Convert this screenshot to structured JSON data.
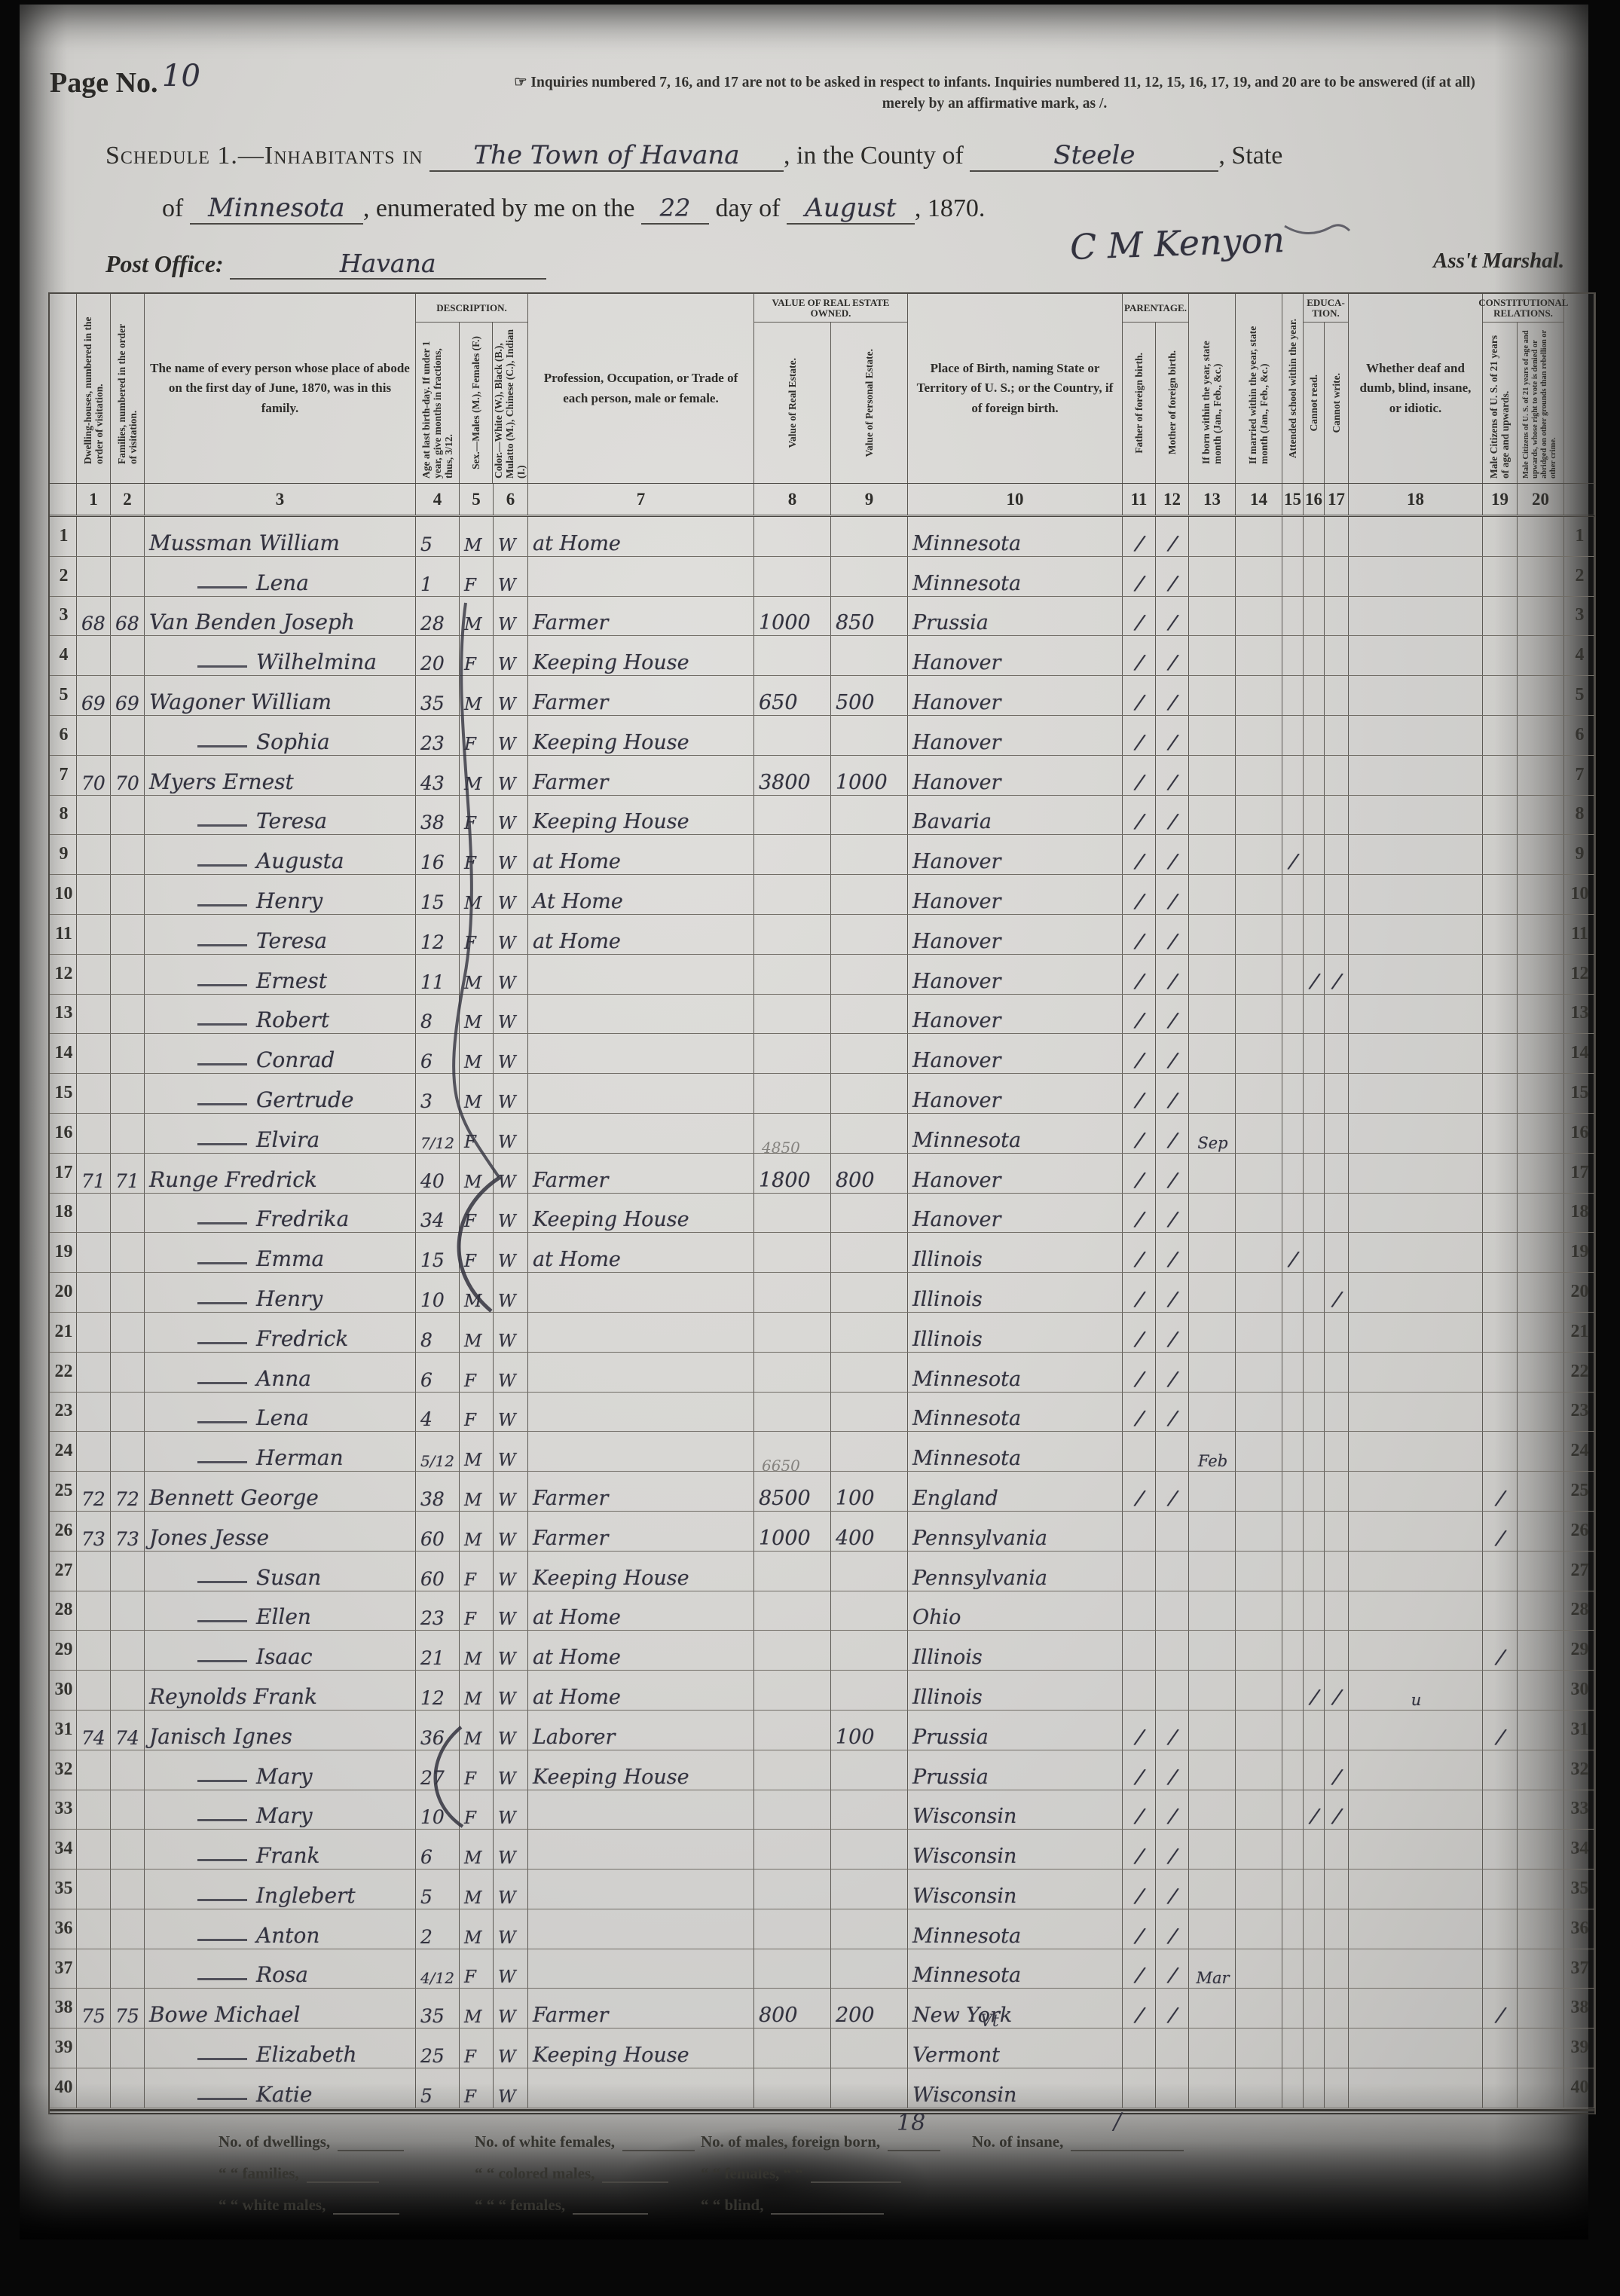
{
  "page": {
    "label": "Page No.",
    "number": "10"
  },
  "note": {
    "line1": "☞ Inquiries numbered 7, 16, and 17 are not to be asked in respect to infants.   Inquiries numbered 11, 12, 15, 16, 17, 19, and 20 are to be answered (if at all)",
    "line2": "merely by an affirmative mark, as /."
  },
  "schedule": {
    "prefix": "Schedule 1.—Inhabitants in",
    "place": "The Town of Havana",
    "mid1": ", in the County of",
    "county": "Steele",
    "mid2": ", State",
    "line2_prefix": "of",
    "state": "Minnesota",
    "mid3": ", enumerated by me on the",
    "day": "22",
    "mid4": "day of",
    "month": "August",
    "year": ", 1870."
  },
  "post_office": {
    "label": "Post Office:",
    "value": "Havana"
  },
  "signature": {
    "name": "C M Kenyon",
    "title": "Ass't Marshal."
  },
  "table": {
    "groups": {
      "description": "DESCRIPTION.",
      "value_owned": "VALUE OF REAL ESTATE OWNED.",
      "parentage": "PARENTAGE.",
      "education": "EDUCA- TION.",
      "constitutional": "CONSTITUTIONAL RELATIONS."
    },
    "columns": [
      {
        "id": "rl",
        "n": "",
        "label": ""
      },
      {
        "id": "1",
        "n": "1",
        "vert": true,
        "label": "Dwelling-houses, numbered in the order of visitation."
      },
      {
        "id": "2",
        "n": "2",
        "vert": true,
        "label": "Families, numbered in the order of visitation."
      },
      {
        "id": "3",
        "n": "3",
        "label": "The name of every person whose place of abode on the first day of June, 1870, was in this family."
      },
      {
        "id": "4",
        "n": "4",
        "vert": true,
        "group": "description",
        "label": "Age at last birth-day. If under 1 year, give months in fractions, thus, 3/12."
      },
      {
        "id": "5",
        "n": "5",
        "vert": true,
        "group": "description",
        "label": "Sex.—Males (M.), Females (F.)"
      },
      {
        "id": "6",
        "n": "6",
        "vert": true,
        "group": "description",
        "label": "Color.—White (W.), Black (B.), Mulatto (M.), Chinese (C.), Indian (I.)"
      },
      {
        "id": "7",
        "n": "7",
        "label": "Profession, Occupation, or Trade of each person, male or female."
      },
      {
        "id": "8",
        "n": "8",
        "vert": true,
        "group": "value_owned",
        "label": "Value of Real Estate."
      },
      {
        "id": "9",
        "n": "9",
        "vert": true,
        "group": "value_owned",
        "label": "Value of Personal Estate."
      },
      {
        "id": "10",
        "n": "10",
        "label": "Place of Birth, naming State or Territory of U. S.; or the Country, if of foreign birth."
      },
      {
        "id": "11",
        "n": "11",
        "vert": true,
        "group": "parentage",
        "label": "Father of foreign birth."
      },
      {
        "id": "12",
        "n": "12",
        "vert": true,
        "group": "parentage",
        "label": "Mother of foreign birth."
      },
      {
        "id": "13",
        "n": "13",
        "vert": true,
        "label": "If born within the year, state month (Jan., Feb., &c.)"
      },
      {
        "id": "14",
        "n": "14",
        "vert": true,
        "label": "If married within the year, state month (Jan., Feb., &c.)"
      },
      {
        "id": "15",
        "n": "15",
        "vert": true,
        "label": "Attended school within the year."
      },
      {
        "id": "16",
        "n": "16",
        "vert": true,
        "group": "education",
        "label": "Cannot read."
      },
      {
        "id": "17",
        "n": "17",
        "vert": true,
        "group": "education",
        "label": "Cannot write."
      },
      {
        "id": "18",
        "n": "18",
        "label": "Whether deaf and dumb, blind, insane, or idiotic."
      },
      {
        "id": "19",
        "n": "19",
        "vert": true,
        "group": "constitutional",
        "label": "Male Citizens of U. S. of 21 years of age and upwards."
      },
      {
        "id": "20",
        "n": "20",
        "vert": true,
        "group": "constitutional",
        "label": "Male Citizens of U. S. of 21 years of age and upwards, whose right to vote is denied or abridged on other grounds than rebellion or other crime."
      },
      {
        "id": "rr",
        "n": "",
        "label": ""
      }
    ]
  },
  "rows": [
    {
      "n": "1",
      "dw": "",
      "fam": "",
      "dash": false,
      "name": "Mussman William",
      "age": "5",
      "sex": "M",
      "col": "W",
      "occ": "at Home",
      "re": "",
      "pe": "",
      "pob": "Minnesota",
      "m": {
        "11": "/",
        "12": "/"
      }
    },
    {
      "n": "2",
      "dw": "",
      "fam": "",
      "dash": true,
      "name": "Lena",
      "age": "1",
      "sex": "F",
      "col": "W",
      "occ": "",
      "re": "",
      "pe": "",
      "pob": "Minnesota",
      "m": {
        "11": "/",
        "12": "/"
      }
    },
    {
      "n": "3",
      "dw": "68",
      "fam": "68",
      "dash": false,
      "name": "Van Benden Joseph",
      "age": "28",
      "sex": "M",
      "col": "W",
      "occ": "Farmer",
      "re": "1000",
      "pe": "850",
      "pob": "Prussia",
      "m": {
        "11": "/",
        "12": "/"
      }
    },
    {
      "n": "4",
      "dw": "",
      "fam": "",
      "dash": true,
      "name": "Wilhelmina",
      "age": "20",
      "sex": "F",
      "col": "W",
      "occ": "Keeping House",
      "re": "",
      "pe": "",
      "pob": "Hanover",
      "m": {
        "11": "/",
        "12": "/"
      }
    },
    {
      "n": "5",
      "dw": "69",
      "fam": "69",
      "dash": false,
      "name": "Wagoner William",
      "age": "35",
      "sex": "M",
      "col": "W",
      "occ": "Farmer",
      "re": "650",
      "pe": "500",
      "pob": "Hanover",
      "m": {
        "11": "/",
        "12": "/"
      }
    },
    {
      "n": "6",
      "dw": "",
      "fam": "",
      "dash": true,
      "name": "Sophia",
      "age": "23",
      "sex": "F",
      "col": "W",
      "occ": "Keeping House",
      "re": "",
      "pe": "",
      "pob": "Hanover",
      "m": {
        "11": "/",
        "12": "/"
      }
    },
    {
      "n": "7",
      "dw": "70",
      "fam": "70",
      "dash": false,
      "name": "Myers Ernest",
      "age": "43",
      "sex": "M",
      "col": "W",
      "occ": "Farmer",
      "re": "3800",
      "pe": "1000",
      "pob": "Hanover",
      "m": {
        "11": "/",
        "12": "/"
      }
    },
    {
      "n": "8",
      "dw": "",
      "fam": "",
      "dash": true,
      "name": "Teresa",
      "age": "38",
      "sex": "F",
      "col": "W",
      "occ": "Keeping House",
      "re": "",
      "pe": "",
      "pob": "Bavaria",
      "m": {
        "11": "/",
        "12": "/"
      }
    },
    {
      "n": "9",
      "dw": "",
      "fam": "",
      "dash": true,
      "name": "Augusta",
      "age": "16",
      "sex": "F",
      "col": "W",
      "occ": "at Home",
      "re": "",
      "pe": "",
      "pob": "Hanover",
      "m": {
        "11": "/",
        "12": "/",
        "15": "/"
      }
    },
    {
      "n": "10",
      "dw": "",
      "fam": "",
      "dash": true,
      "name": "Henry",
      "age": "15",
      "sex": "M",
      "col": "W",
      "occ": "At Home",
      "re": "",
      "pe": "",
      "pob": "Hanover",
      "m": {
        "11": "/",
        "12": "/"
      }
    },
    {
      "n": "11",
      "dw": "",
      "fam": "",
      "dash": true,
      "name": "Teresa",
      "age": "12",
      "sex": "F",
      "col": "W",
      "occ": "at Home",
      "re": "",
      "pe": "",
      "pob": "Hanover",
      "m": {
        "11": "/",
        "12": "/"
      }
    },
    {
      "n": "12",
      "dw": "",
      "fam": "",
      "dash": true,
      "name": "Ernest",
      "age": "11",
      "sex": "M",
      "col": "W",
      "occ": "",
      "re": "",
      "pe": "",
      "pob": "Hanover",
      "m": {
        "11": "/",
        "12": "/",
        "16": "/",
        "17": "/"
      }
    },
    {
      "n": "13",
      "dw": "",
      "fam": "",
      "dash": true,
      "name": "Robert",
      "age": "8",
      "sex": "M",
      "col": "W",
      "occ": "",
      "re": "",
      "pe": "",
      "pob": "Hanover",
      "m": {
        "11": "/",
        "12": "/"
      }
    },
    {
      "n": "14",
      "dw": "",
      "fam": "",
      "dash": true,
      "name": "Conrad",
      "age": "6",
      "sex": "M",
      "col": "W",
      "occ": "",
      "re": "",
      "pe": "",
      "pob": "Hanover",
      "m": {
        "11": "/",
        "12": "/"
      }
    },
    {
      "n": "15",
      "dw": "",
      "fam": "",
      "dash": true,
      "name": "Gertrude",
      "age": "3",
      "sex": "M",
      "col": "W",
      "occ": "",
      "re": "",
      "pe": "",
      "pob": "Hanover",
      "m": {
        "11": "/",
        "12": "/"
      }
    },
    {
      "n": "16",
      "dw": "",
      "fam": "",
      "dash": true,
      "name": "Elvira",
      "age": "7/12",
      "sex": "F",
      "col": "W",
      "occ": "",
      "re": "",
      "pe": "",
      "pob": "Minnesota",
      "m": {
        "11": "/",
        "12": "/",
        "13": "Sep"
      }
    },
    {
      "n": "17",
      "dw": "71",
      "fam": "71",
      "dash": false,
      "name": "Runge Fredrick",
      "age": "40",
      "sex": "M",
      "col": "W",
      "occ": "Farmer",
      "re": "1800",
      "re_pencil": "4850",
      "pe": "800",
      "pob": "Hanover",
      "m": {
        "11": "/",
        "12": "/"
      }
    },
    {
      "n": "18",
      "dw": "",
      "fam": "",
      "dash": true,
      "name": "Fredrika",
      "age": "34",
      "sex": "F",
      "col": "W",
      "occ": "Keeping House",
      "re": "",
      "pe": "",
      "pob": "Hanover",
      "m": {
        "11": "/",
        "12": "/"
      }
    },
    {
      "n": "19",
      "dw": "",
      "fam": "",
      "dash": true,
      "name": "Emma",
      "age": "15",
      "sex": "F",
      "col": "W",
      "occ": "at Home",
      "re": "",
      "pe": "",
      "pob": "Illinois",
      "m": {
        "11": "/",
        "12": "/",
        "15": "/"
      }
    },
    {
      "n": "20",
      "dw": "",
      "fam": "",
      "dash": true,
      "name": "Henry",
      "age": "10",
      "sex": "M",
      "col": "W",
      "occ": "",
      "re": "",
      "pe": "",
      "pob": "Illinois",
      "m": {
        "11": "/",
        "12": "/",
        "17": "/"
      }
    },
    {
      "n": "21",
      "dw": "",
      "fam": "",
      "dash": true,
      "name": "Fredrick",
      "age": "8",
      "sex": "M",
      "col": "W",
      "occ": "",
      "re": "",
      "pe": "",
      "pob": "Illinois",
      "m": {
        "11": "/",
        "12": "/"
      }
    },
    {
      "n": "22",
      "dw": "",
      "fam": "",
      "dash": true,
      "name": "Anna",
      "age": "6",
      "sex": "F",
      "col": "W",
      "occ": "",
      "re": "",
      "pe": "",
      "pob": "Minnesota",
      "m": {
        "11": "/",
        "12": "/"
      }
    },
    {
      "n": "23",
      "dw": "",
      "fam": "",
      "dash": true,
      "name": "Lena",
      "age": "4",
      "sex": "F",
      "col": "W",
      "occ": "",
      "re": "",
      "pe": "",
      "pob": "Minnesota",
      "m": {
        "11": "/",
        "12": "/"
      }
    },
    {
      "n": "24",
      "dw": "",
      "fam": "",
      "dash": true,
      "name": "Herman",
      "age": "5/12",
      "sex": "M",
      "col": "W",
      "occ": "",
      "re": "",
      "pe": "",
      "pob": "Minnesota",
      "m": {
        "13": "Feb"
      }
    },
    {
      "n": "25",
      "dw": "72",
      "fam": "72",
      "dash": false,
      "name": "Bennett George",
      "age": "38",
      "sex": "M",
      "col": "W",
      "occ": "Farmer",
      "re": "8500",
      "re_pencil": "6650",
      "pe": "100",
      "pob": "England",
      "m": {
        "11": "/",
        "12": "/",
        "19": "/"
      }
    },
    {
      "n": "26",
      "dw": "73",
      "fam": "73",
      "dash": false,
      "name": "Jones Jesse",
      "age": "60",
      "sex": "M",
      "col": "W",
      "occ": "Farmer",
      "re": "1000",
      "pe": "400",
      "pob": "Pennsylvania",
      "m": {
        "19": "/"
      }
    },
    {
      "n": "27",
      "dw": "",
      "fam": "",
      "dash": true,
      "name": "Susan",
      "age": "60",
      "sex": "F",
      "col": "W",
      "occ": "Keeping House",
      "re": "",
      "pe": "",
      "pob": "Pennsylvania",
      "m": {}
    },
    {
      "n": "28",
      "dw": "",
      "fam": "",
      "dash": true,
      "name": "Ellen",
      "age": "23",
      "sex": "F",
      "col": "W",
      "occ": "at Home",
      "re": "",
      "pe": "",
      "pob": "Ohio",
      "m": {}
    },
    {
      "n": "29",
      "dw": "",
      "fam": "",
      "dash": true,
      "name": "Isaac",
      "age": "21",
      "sex": "M",
      "col": "W",
      "occ": "at Home",
      "re": "",
      "pe": "",
      "pob": "Illinois",
      "m": {
        "19": "/"
      }
    },
    {
      "n": "30",
      "dw": "",
      "fam": "",
      "dash": false,
      "name": "Reynolds Frank",
      "age": "12",
      "sex": "M",
      "col": "W",
      "occ": "at Home",
      "re": "",
      "pe": "",
      "pob": "Illinois",
      "m": {
        "16": "/",
        "17": "/",
        "18": "u"
      }
    },
    {
      "n": "31",
      "dw": "74",
      "fam": "74",
      "dash": false,
      "name": "Janisch Ignes",
      "age": "36",
      "sex": "M",
      "col": "W",
      "occ": "Laborer",
      "re": "",
      "pe": "100",
      "pob": "Prussia",
      "m": {
        "11": "/",
        "12": "/",
        "19": "/"
      }
    },
    {
      "n": "32",
      "dw": "",
      "fam": "",
      "dash": true,
      "name": "Mary",
      "age": "27",
      "sex": "F",
      "col": "W",
      "occ": "Keeping House",
      "re": "",
      "pe": "",
      "pob": "Prussia",
      "m": {
        "11": "/",
        "12": "/",
        "17": "/"
      }
    },
    {
      "n": "33",
      "dw": "",
      "fam": "",
      "dash": true,
      "name": "Mary",
      "age": "10",
      "sex": "F",
      "col": "W",
      "occ": "",
      "re": "",
      "pe": "",
      "pob": "Wisconsin",
      "m": {
        "11": "/",
        "12": "/",
        "16": "/",
        "17": "/"
      }
    },
    {
      "n": "34",
      "dw": "",
      "fam": "",
      "dash": true,
      "name": "Frank",
      "age": "6",
      "sex": "M",
      "col": "W",
      "occ": "",
      "re": "",
      "pe": "",
      "pob": "Wisconsin",
      "m": {
        "11": "/",
        "12": "/"
      }
    },
    {
      "n": "35",
      "dw": "",
      "fam": "",
      "dash": true,
      "name": "Inglebert",
      "age": "5",
      "sex": "M",
      "col": "W",
      "occ": "",
      "re": "",
      "pe": "",
      "pob": "Wisconsin",
      "m": {
        "11": "/",
        "12": "/"
      }
    },
    {
      "n": "36",
      "dw": "",
      "fam": "",
      "dash": true,
      "name": "Anton",
      "age": "2",
      "sex": "M",
      "col": "W",
      "occ": "",
      "re": "",
      "pe": "",
      "pob": "Minnesota",
      "m": {
        "11": "/",
        "12": "/"
      }
    },
    {
      "n": "37",
      "dw": "",
      "fam": "",
      "dash": true,
      "name": "Rosa",
      "age": "4/12",
      "sex": "F",
      "col": "W",
      "occ": "",
      "re": "",
      "pe": "",
      "pob": "Minnesota",
      "m": {
        "11": "/",
        "12": "/",
        "13": "Mar"
      }
    },
    {
      "n": "38",
      "dw": "75",
      "fam": "75",
      "dash": false,
      "name": "Bowe Michael",
      "age": "35",
      "sex": "M",
      "col": "W",
      "occ": "Farmer",
      "re": "800",
      "pe": "200",
      "pob": "New York",
      "m": {
        "11": "/",
        "12": "/",
        "19": "/"
      }
    },
    {
      "n": "39",
      "dw": "",
      "fam": "",
      "dash": true,
      "name": "Elizabeth",
      "age": "25",
      "sex": "F",
      "col": "W",
      "occ": "Keeping House",
      "re": "",
      "pe": "",
      "pob": "Vermont",
      "pob_note": "Vt",
      "m": {}
    },
    {
      "n": "40",
      "dw": "",
      "fam": "",
      "dash": true,
      "name": "Katie",
      "age": "5",
      "sex": "F",
      "col": "W",
      "occ": "",
      "re": "",
      "pe": "",
      "pob": "Wisconsin",
      "m": {}
    }
  ],
  "footer": {
    "line1": [
      "No. of dwellings,",
      "No. of white females,",
      "No. of males, foreign born,",
      "No. of insane,"
    ],
    "line2": [
      "“  “  families,",
      "“  “  colored males,",
      "“  “  females,  “  “"
    ],
    "line3": [
      "“  “  white males,",
      "“  “  “  females,",
      "“  “  blind,"
    ],
    "hw_foreign_born": "18",
    "hw_insane": "/"
  }
}
